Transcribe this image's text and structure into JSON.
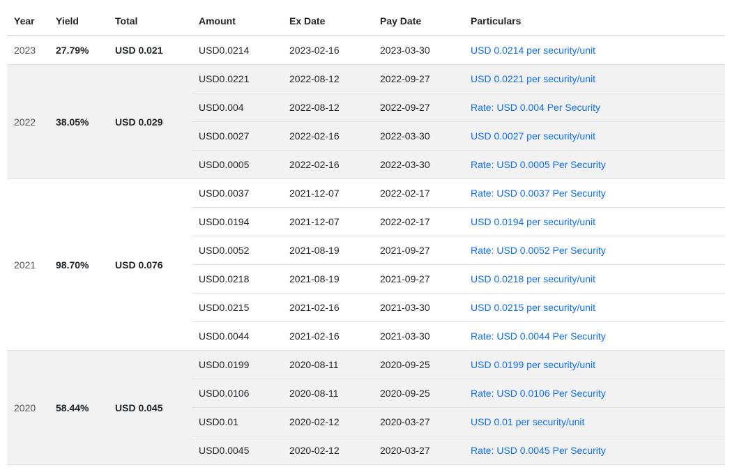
{
  "table": {
    "columns": {
      "year": "Year",
      "yield": "Yield",
      "total": "Total",
      "amount": "Amount",
      "ex_date": "Ex Date",
      "pay_date": "Pay Date",
      "particulars": "Particulars"
    },
    "groups": [
      {
        "year": "2023",
        "yield": "27.79%",
        "total": "USD 0.021",
        "shaded": false,
        "rows": [
          {
            "amount": "USD0.0214",
            "ex_date": "2023-02-16",
            "pay_date": "2023-03-30",
            "particulars": "USD 0.0214 per security/unit"
          }
        ]
      },
      {
        "year": "2022",
        "yield": "38.05%",
        "total": "USD 0.029",
        "shaded": true,
        "rows": [
          {
            "amount": "USD0.0221",
            "ex_date": "2022-08-12",
            "pay_date": "2022-09-27",
            "particulars": "USD 0.0221 per security/unit"
          },
          {
            "amount": "USD0.004",
            "ex_date": "2022-08-12",
            "pay_date": "2022-09-27",
            "particulars": "Rate: USD 0.004 Per Security"
          },
          {
            "amount": "USD0.0027",
            "ex_date": "2022-02-16",
            "pay_date": "2022-03-30",
            "particulars": "USD 0.0027 per security/unit"
          },
          {
            "amount": "USD0.0005",
            "ex_date": "2022-02-16",
            "pay_date": "2022-03-30",
            "particulars": "Rate: USD 0.0005 Per Security"
          }
        ]
      },
      {
        "year": "2021",
        "yield": "98.70%",
        "total": "USD 0.076",
        "shaded": false,
        "rows": [
          {
            "amount": "USD0.0037",
            "ex_date": "2021-12-07",
            "pay_date": "2022-02-17",
            "particulars": "Rate: USD 0.0037 Per Security"
          },
          {
            "amount": "USD0.0194",
            "ex_date": "2021-12-07",
            "pay_date": "2022-02-17",
            "particulars": "USD 0.0194 per security/unit"
          },
          {
            "amount": "USD0.0052",
            "ex_date": "2021-08-19",
            "pay_date": "2021-09-27",
            "particulars": "Rate: USD 0.0052 Per Security"
          },
          {
            "amount": "USD0.0218",
            "ex_date": "2021-08-19",
            "pay_date": "2021-09-27",
            "particulars": "USD 0.0218 per security/unit"
          },
          {
            "amount": "USD0.0215",
            "ex_date": "2021-02-16",
            "pay_date": "2021-03-30",
            "particulars": "USD 0.0215 per security/unit"
          },
          {
            "amount": "USD0.0044",
            "ex_date": "2021-02-16",
            "pay_date": "2021-03-30",
            "particulars": "Rate: USD 0.0044 Per Security"
          }
        ]
      },
      {
        "year": "2020",
        "yield": "58.44%",
        "total": "USD 0.045",
        "shaded": true,
        "rows": [
          {
            "amount": "USD0.0199",
            "ex_date": "2020-08-11",
            "pay_date": "2020-09-25",
            "particulars": "USD 0.0199 per security/unit"
          },
          {
            "amount": "USD0.0106",
            "ex_date": "2020-08-11",
            "pay_date": "2020-09-25",
            "particulars": "Rate: USD 0.0106 Per Security"
          },
          {
            "amount": "USD0.01",
            "ex_date": "2020-02-12",
            "pay_date": "2020-03-27",
            "particulars": "USD 0.01 per security/unit"
          },
          {
            "amount": "USD0.0045",
            "ex_date": "2020-02-12",
            "pay_date": "2020-03-27",
            "particulars": "Rate: USD 0.0045 Per Security"
          }
        ]
      }
    ]
  }
}
